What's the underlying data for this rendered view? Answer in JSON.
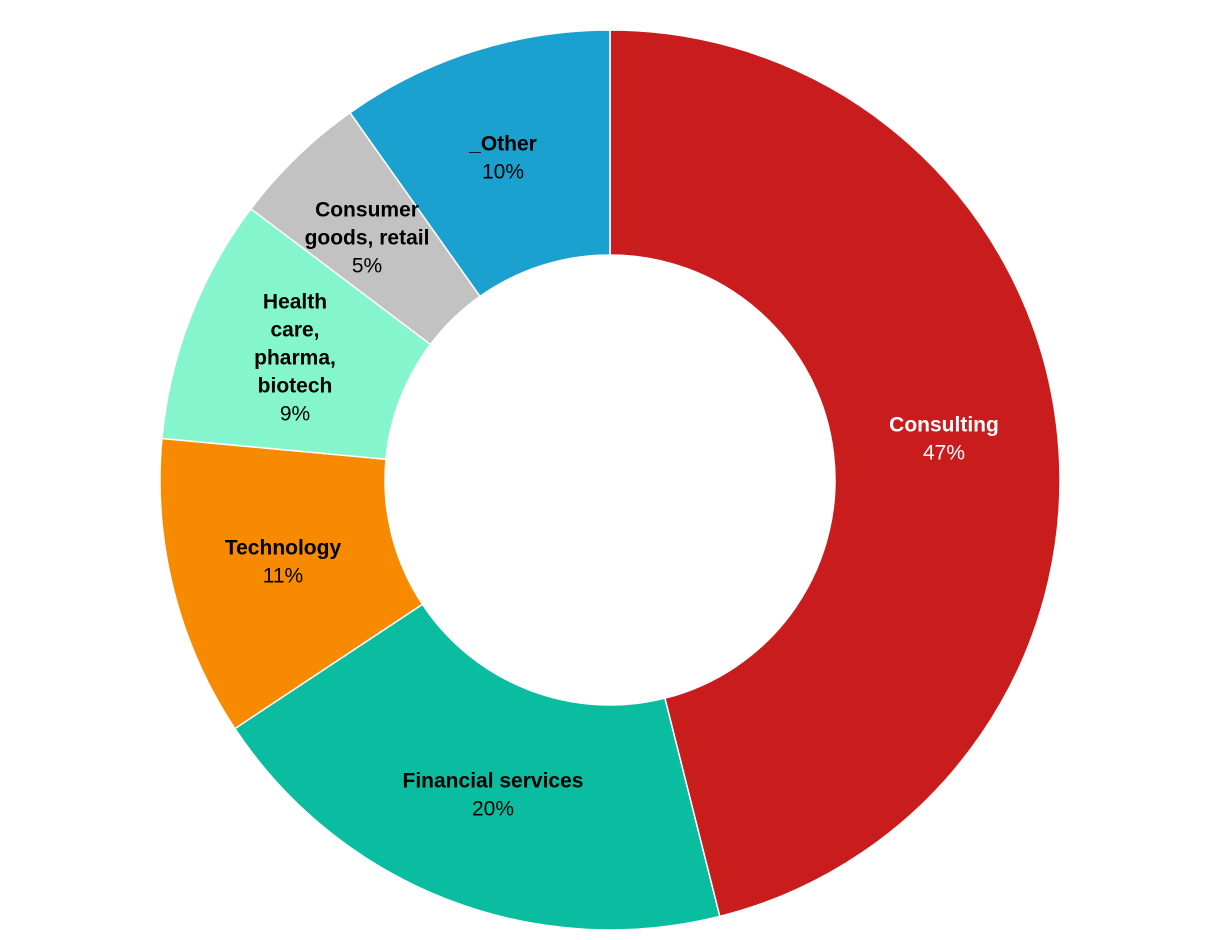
{
  "chart_data": {
    "type": "pie",
    "variant": "donut",
    "title": "",
    "legend": "none",
    "start": "top",
    "direction": "clockwise",
    "slices": [
      {
        "label": "Consulting",
        "label_lines": [
          "Consulting"
        ],
        "value": 47,
        "value_label": "47%",
        "color": "#c91c1c",
        "text_color": "#ffffff"
      },
      {
        "label": "Financial services",
        "label_lines": [
          "Financial services"
        ],
        "value": 20,
        "value_label": "20%",
        "color": "#0bbda0",
        "text_color": "#000000"
      },
      {
        "label": "Technology",
        "label_lines": [
          "Technology"
        ],
        "value": 11,
        "value_label": "11%",
        "color": "#f78a00",
        "text_color": "#000000"
      },
      {
        "label": "Health care, pharma, biotech",
        "label_lines": [
          "Health",
          "care,",
          "pharma,",
          "biotech"
        ],
        "value": 9,
        "value_label": "9%",
        "color": "#84f5cd",
        "text_color": "#000000"
      },
      {
        "label": "Consumer goods, retail",
        "label_lines": [
          "Consumer",
          "goods, retail"
        ],
        "value": 5,
        "value_label": "5%",
        "color": "#c2c2c2",
        "text_color": "#000000"
      },
      {
        "label": "_Other",
        "label_lines": [
          "_Other"
        ],
        "value": 10,
        "value_label": "10%",
        "color": "#1ba1cf",
        "text_color": "#000000"
      }
    ]
  }
}
